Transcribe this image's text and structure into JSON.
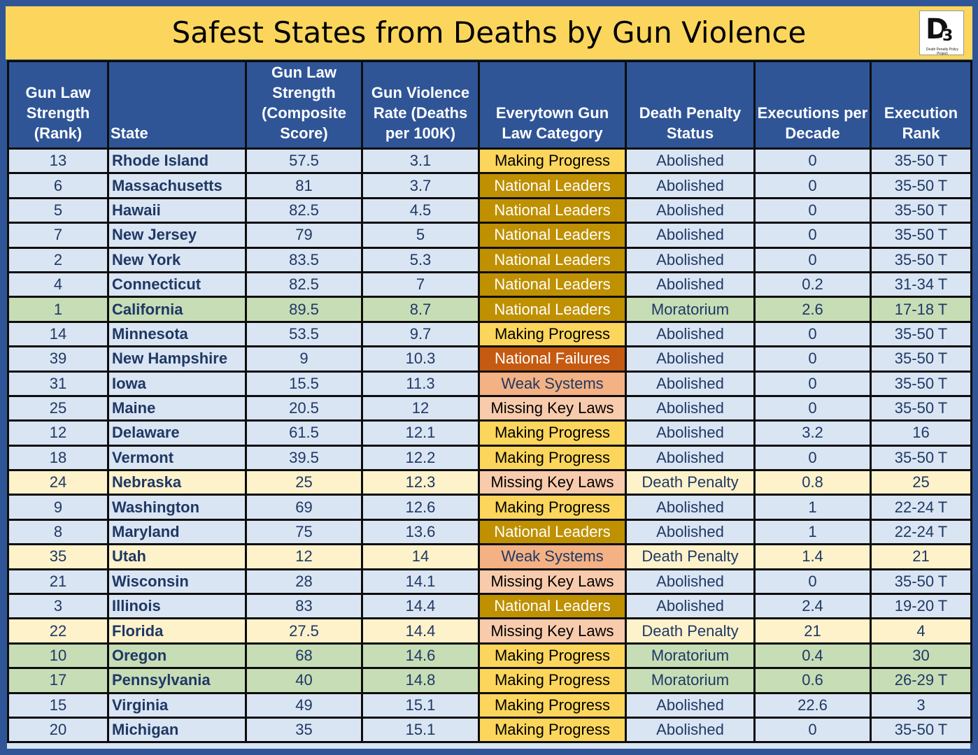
{
  "title": "Safest States from Deaths by Gun Violence",
  "logo": {
    "letter": "D",
    "superscript": "3",
    "caption": "Death Penalty Policy Project"
  },
  "colors": {
    "header_bg": "#2f5597",
    "title_bg": "#fcd65c",
    "abolished_row": "#dae5f3",
    "moratorium_row": "#c7ddb6",
    "death_penalty_row": "#fef2cb",
    "making_progress": "#fcd65c",
    "national_leaders": "#bf9000",
    "national_failures": "#c55a11",
    "weak_systems": "#f4b183",
    "missing_key_laws": "#f8cbad"
  },
  "chart_data": {
    "type": "table",
    "title": "Safest States from Deaths by Gun Violence",
    "columns": [
      "Gun Law Strength (Rank)",
      "State",
      "Gun Law Strength (Composite Score)",
      "Gun Violence Rate (Deaths per 100K)",
      "Everytown Gun Law Category",
      "Death Penalty Status",
      "Executions per Decade",
      "Execution Rank"
    ],
    "rows": [
      [
        "13",
        "Rhode Island",
        "57.5",
        "3.1",
        "Making Progress",
        "Abolished",
        "0",
        "35-50 T"
      ],
      [
        "6",
        "Massachusetts",
        "81",
        "3.7",
        "National Leaders",
        "Abolished",
        "0",
        "35-50 T"
      ],
      [
        "5",
        "Hawaii",
        "82.5",
        "4.5",
        "National Leaders",
        "Abolished",
        "0",
        "35-50 T"
      ],
      [
        "7",
        "New Jersey",
        "79",
        "5",
        "National Leaders",
        "Abolished",
        "0",
        "35-50 T"
      ],
      [
        "2",
        "New York",
        "83.5",
        "5.3",
        "National Leaders",
        "Abolished",
        "0",
        "35-50 T"
      ],
      [
        "4",
        "Connecticut",
        "82.5",
        "7",
        "National Leaders",
        "Abolished",
        "0.2",
        "31-34 T"
      ],
      [
        "1",
        "California",
        "89.5",
        "8.7",
        "National Leaders",
        "Moratorium",
        "2.6",
        "17-18 T"
      ],
      [
        "14",
        "Minnesota",
        "53.5",
        "9.7",
        "Making Progress",
        "Abolished",
        "0",
        "35-50 T"
      ],
      [
        "39",
        "New Hampshire",
        "9",
        "10.3",
        "National Failures",
        "Abolished",
        "0",
        "35-50 T"
      ],
      [
        "31",
        "Iowa",
        "15.5",
        "11.3",
        "Weak Systems",
        "Abolished",
        "0",
        "35-50 T"
      ],
      [
        "25",
        "Maine",
        "20.5",
        "12",
        "Missing Key Laws",
        "Abolished",
        "0",
        "35-50 T"
      ],
      [
        "12",
        "Delaware",
        "61.5",
        "12.1",
        "Making Progress",
        "Abolished",
        "3.2",
        "16"
      ],
      [
        "18",
        "Vermont",
        "39.5",
        "12.2",
        "Making Progress",
        "Abolished",
        "0",
        "35-50 T"
      ],
      [
        "24",
        "Nebraska",
        "25",
        "12.3",
        "Missing Key Laws",
        "Death Penalty",
        "0.8",
        "25"
      ],
      [
        "9",
        "Washington",
        "69",
        "12.6",
        "Making Progress",
        "Abolished",
        "1",
        "22-24 T"
      ],
      [
        "8",
        "Maryland",
        "75",
        "13.6",
        "National Leaders",
        "Abolished",
        "1",
        "22-24 T"
      ],
      [
        "35",
        "Utah",
        "12",
        "14",
        "Weak Systems",
        "Death Penalty",
        "1.4",
        "21"
      ],
      [
        "21",
        "Wisconsin",
        "28",
        "14.1",
        "Missing Key Laws",
        "Abolished",
        "0",
        "35-50 T"
      ],
      [
        "3",
        "Illinois",
        "83",
        "14.4",
        "National Leaders",
        "Abolished",
        "2.4",
        "19-20 T"
      ],
      [
        "22",
        "Florida",
        "27.5",
        "14.4",
        "Missing Key Laws",
        "Death Penalty",
        "21",
        "4"
      ],
      [
        "10",
        "Oregon",
        "68",
        "14.6",
        "Making Progress",
        "Moratorium",
        "0.4",
        "30"
      ],
      [
        "17",
        "Pennsylvania",
        "40",
        "14.8",
        "Making Progress",
        "Moratorium",
        "0.6",
        "26-29 T"
      ],
      [
        "15",
        "Virginia",
        "49",
        "15.1",
        "Making Progress",
        "Abolished",
        "22.6",
        "3"
      ],
      [
        "20",
        "Michigan",
        "35",
        "15.1",
        "Making Progress",
        "Abolished",
        "0",
        "35-50 T"
      ]
    ]
  }
}
